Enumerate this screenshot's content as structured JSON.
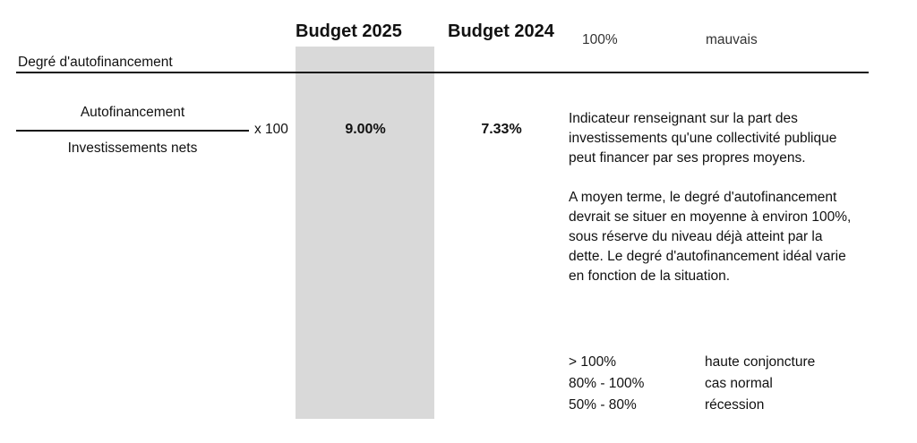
{
  "header": {
    "columns": [
      "Budget 2025",
      "Budget 2024"
    ],
    "clipped_row": [
      "100%",
      "mauvais"
    ]
  },
  "indicator": {
    "label": "Degré d'autofinancement",
    "formula": {
      "numerator": "Autofinancement",
      "denominator": "Investissements nets",
      "multiplier": "x 100"
    },
    "values": [
      "9.00%",
      "7.33%"
    ],
    "description": [
      "Indicateur renseignant sur la part des investissements qu'une collectivité publique peut financer par ses propres moyens.",
      "A moyen terme, le degré d'autofinancement devrait se situer en moyenne à environ 100%, sous réserve du niveau déjà atteint par la dette. Le degré d'autofinancement idéal varie en fonction de la situation."
    ],
    "scale": [
      [
        "> 100%",
        "haute conjoncture"
      ],
      [
        "80% - 100%",
        "cas normal"
      ],
      [
        "50% - 80%",
        "récession"
      ]
    ]
  }
}
